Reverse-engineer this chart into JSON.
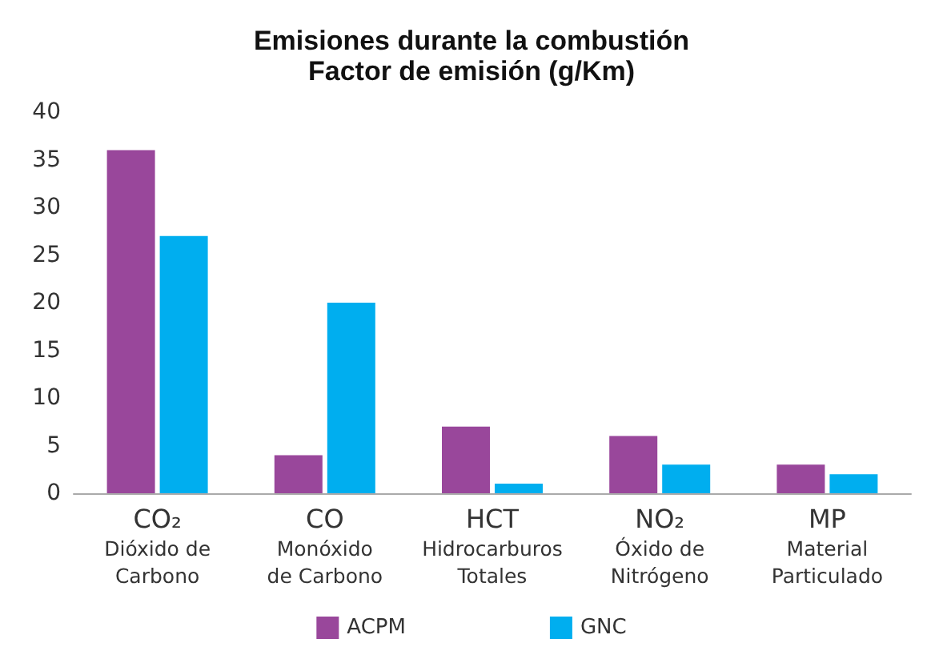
{
  "chart_data": {
    "type": "bar",
    "title": "Emisiones durante la combustión",
    "subtitle": "Factor de emisión (g/Km)",
    "categories": [
      "CO₂\nDióxido de\nCarbono",
      "CO\nMonóxido\nde Carbono",
      "HCT\nHidrocarburos\nTotales",
      "NO₂\nÓxido de\nNitrógeno",
      "MP\nMaterial\nParticulado"
    ],
    "series": [
      {
        "name": "ACPM",
        "color": "#99479b",
        "values": [
          36,
          4,
          7,
          6,
          3
        ]
      },
      {
        "name": "GNC",
        "color": "#00aeef",
        "values": [
          27,
          20,
          1,
          3,
          2
        ]
      }
    ],
    "ylim": [
      0,
      40
    ],
    "yticks": [
      0,
      5,
      10,
      15,
      20,
      25,
      30,
      35,
      40
    ],
    "grid": false,
    "legend": "bottom"
  }
}
